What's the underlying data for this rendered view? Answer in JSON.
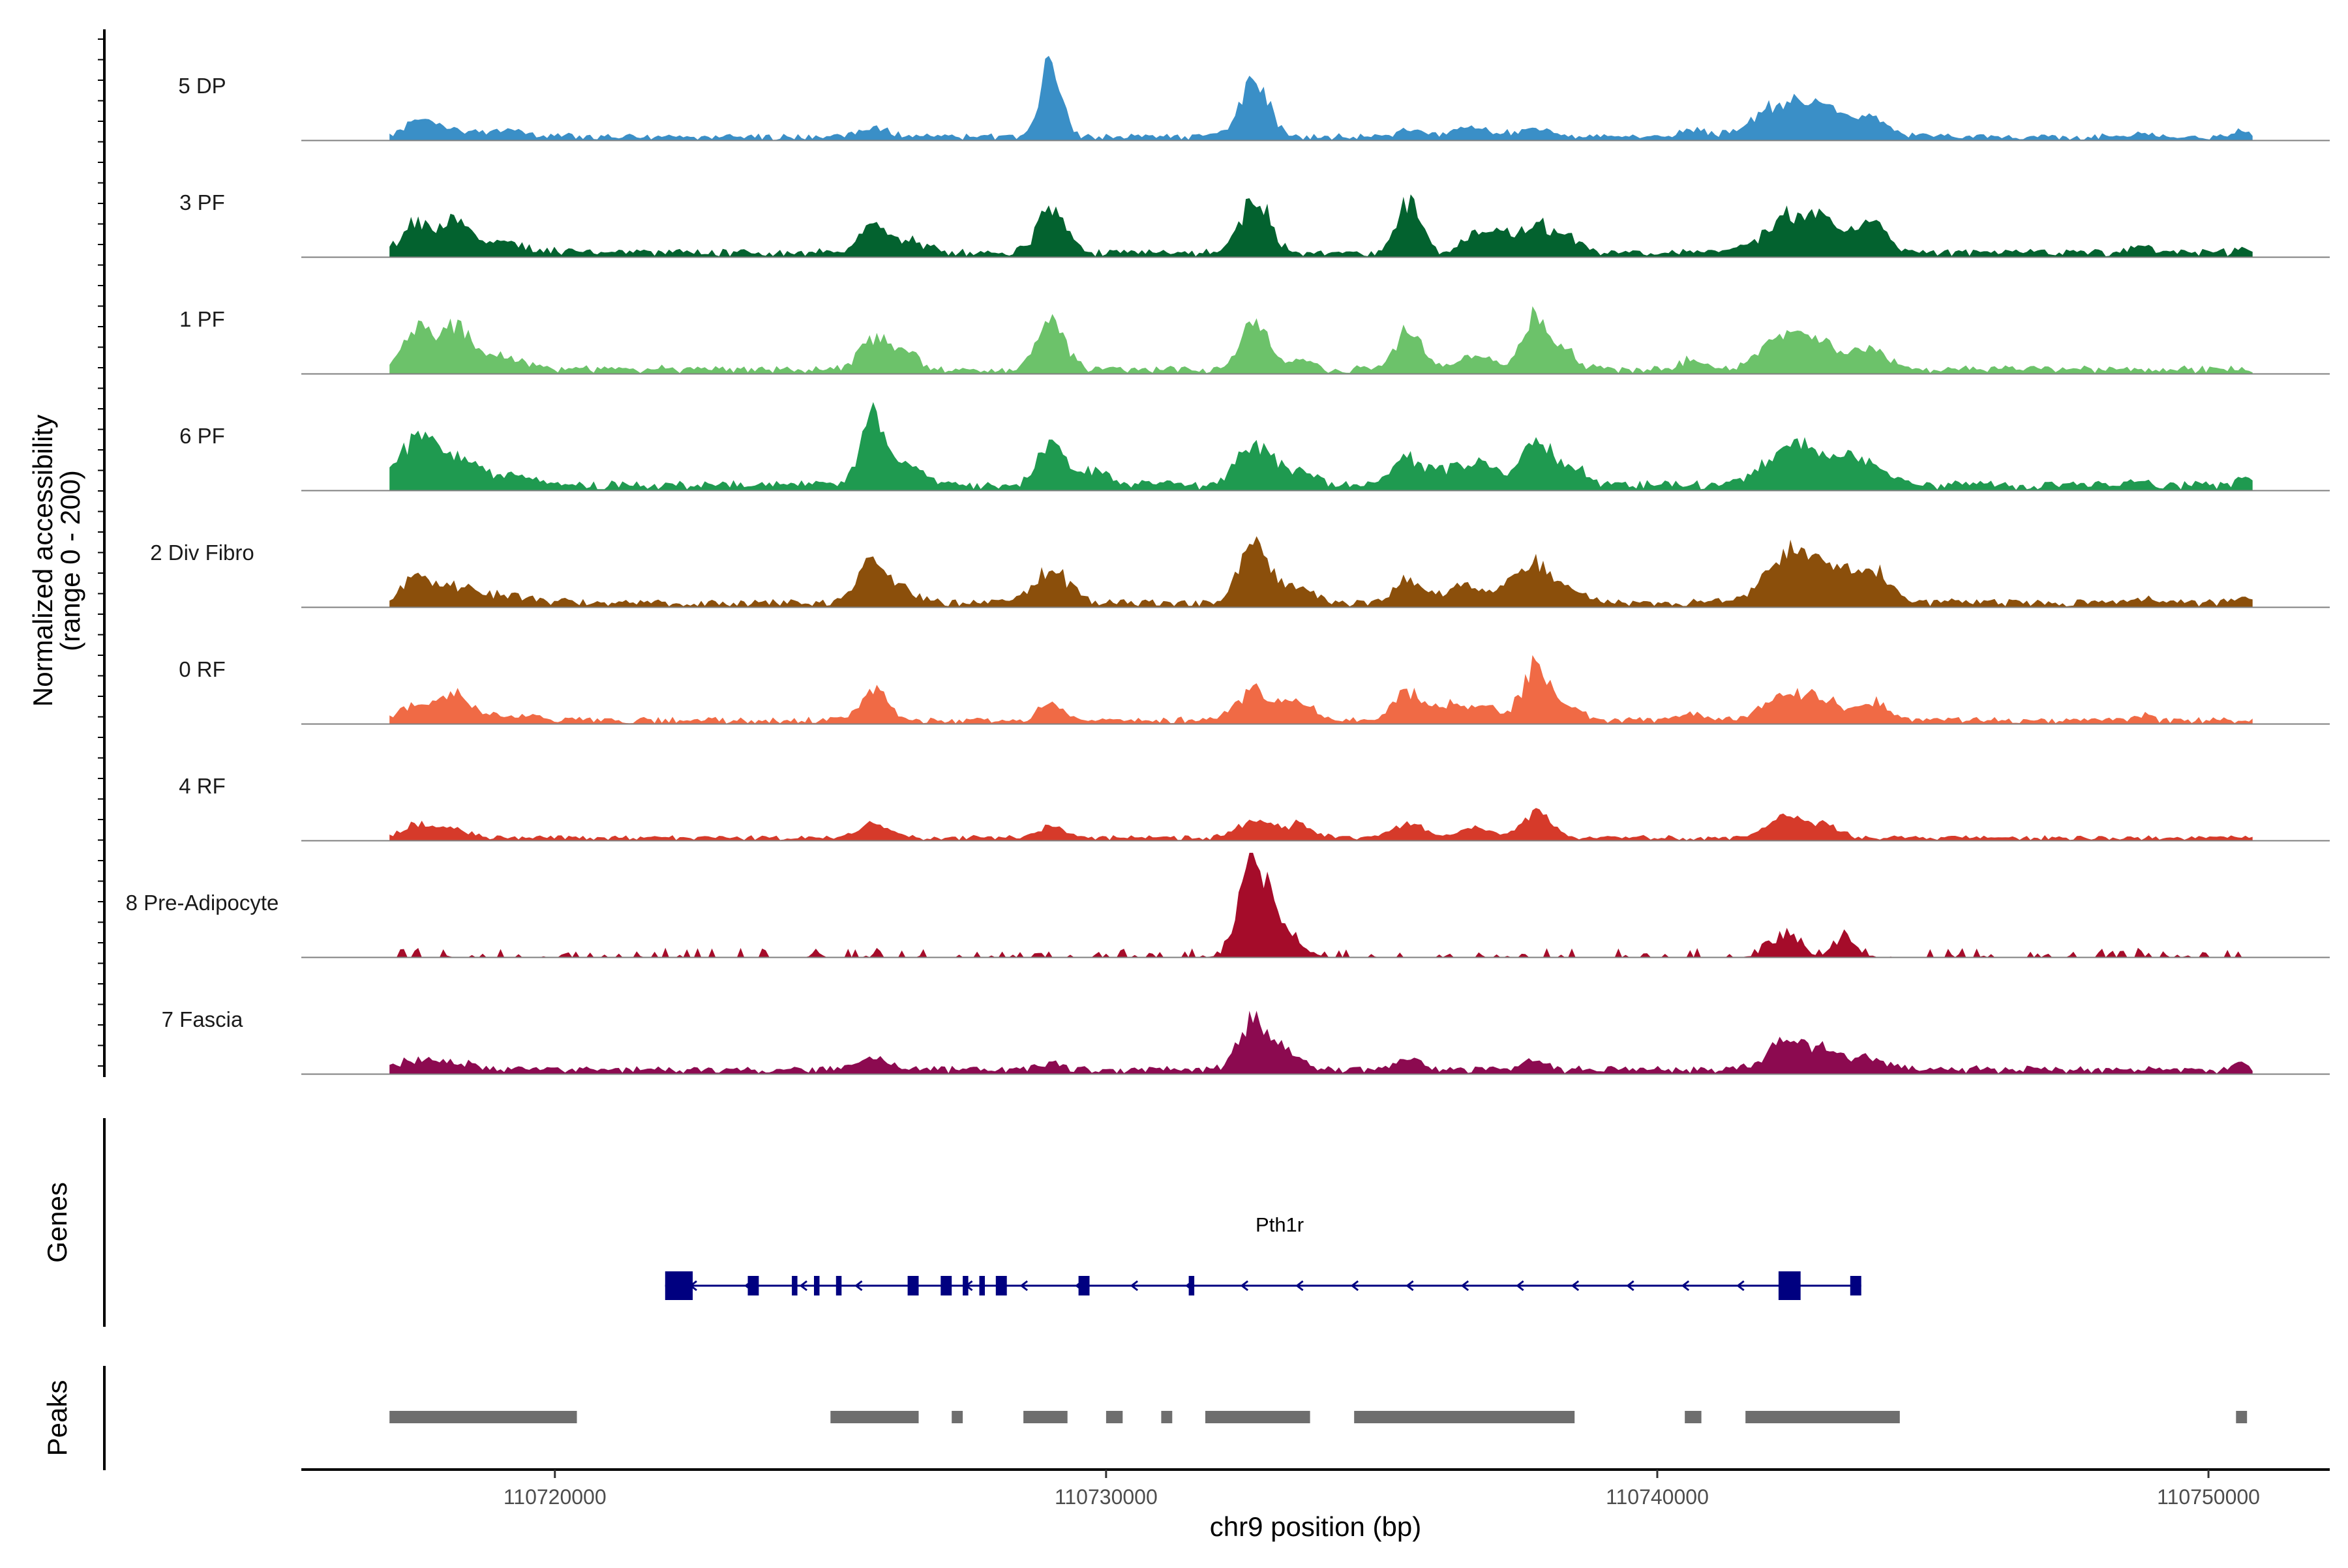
{
  "chart_data": {
    "type": "area",
    "title": "",
    "chromosome": "chr9",
    "region": [
      110717000,
      110750800
    ],
    "xlabel": "chr9 position (bp)",
    "ylabel_line1": "Normalized accessibility",
    "ylabel_line2": "(range 0 - 200)",
    "ylim": [
      0,
      200
    ],
    "x_ticks": [
      {
        "value": 110720000,
        "label": "110720000"
      },
      {
        "value": 110730000,
        "label": "110730000"
      },
      {
        "value": 110740000,
        "label": "110740000"
      },
      {
        "value": 110750000,
        "label": "110750000"
      }
    ],
    "panel_labels": {
      "genes": "Genes",
      "peaks": "Peaks"
    },
    "tracks": [
      {
        "name": "5 DP",
        "color": "#3A8FC7",
        "base": 8,
        "noise": 6,
        "sparse": false,
        "peaks": [
          [
            110717500,
            20,
            250
          ],
          [
            110717800,
            18,
            300
          ],
          [
            110719000,
            12,
            500
          ],
          [
            110725800,
            18,
            250
          ],
          [
            110729000,
            160,
            180
          ],
          [
            110732700,
            110,
            250
          ],
          [
            110735500,
            14,
            200
          ],
          [
            110736700,
            16,
            400
          ],
          [
            110737800,
            14,
            300
          ],
          [
            110740600,
            18,
            200
          ],
          [
            110742300,
            60,
            500
          ],
          [
            110743000,
            40,
            400
          ],
          [
            110743900,
            35,
            300
          ],
          [
            110748800,
            10,
            150
          ],
          [
            110750600,
            10,
            120
          ]
        ]
      },
      {
        "name": "3 PF",
        "color": "#03622F",
        "base": 10,
        "noise": 7,
        "sparse": false,
        "peaks": [
          [
            110717500,
            60,
            250
          ],
          [
            110718200,
            55,
            250
          ],
          [
            110719000,
            20,
            500
          ],
          [
            110725800,
            55,
            250
          ],
          [
            110726500,
            20,
            250
          ],
          [
            110729000,
            85,
            250
          ],
          [
            110732700,
            110,
            250
          ],
          [
            110735500,
            105,
            200
          ],
          [
            110736700,
            40,
            200
          ],
          [
            110737200,
            35,
            200
          ],
          [
            110737800,
            60,
            250
          ],
          [
            110738400,
            30,
            200
          ],
          [
            110742300,
            60,
            400
          ],
          [
            110743000,
            55,
            400
          ],
          [
            110743900,
            55,
            250
          ],
          [
            110748800,
            15,
            150
          ],
          [
            110750600,
            10,
            120
          ]
        ]
      },
      {
        "name": "1 PF",
        "color": "#6CC26A",
        "base": 10,
        "noise": 7,
        "sparse": false,
        "peaks": [
          [
            110717500,
            95,
            250
          ],
          [
            110718200,
            80,
            250
          ],
          [
            110719000,
            25,
            400
          ],
          [
            110725800,
            65,
            250
          ],
          [
            110726400,
            35,
            200
          ],
          [
            110729000,
            90,
            250
          ],
          [
            110732700,
            85,
            250
          ],
          [
            110733500,
            20,
            200
          ],
          [
            110735500,
            70,
            250
          ],
          [
            110736700,
            30,
            250
          ],
          [
            110737800,
            100,
            250
          ],
          [
            110738400,
            25,
            200
          ],
          [
            110740600,
            20,
            200
          ],
          [
            110742300,
            55,
            400
          ],
          [
            110743000,
            40,
            400
          ],
          [
            110743900,
            35,
            300
          ]
        ]
      },
      {
        "name": "6 PF",
        "color": "#1F9A50",
        "base": 12,
        "noise": 8,
        "sparse": false,
        "peaks": [
          [
            110717500,
            85,
            350
          ],
          [
            110718200,
            45,
            300
          ],
          [
            110719000,
            20,
            500
          ],
          [
            110725800,
            130,
            250
          ],
          [
            110726500,
            30,
            300
          ],
          [
            110729000,
            80,
            250
          ],
          [
            110729800,
            30,
            250
          ],
          [
            110732700,
            80,
            300
          ],
          [
            110733500,
            25,
            300
          ],
          [
            110735500,
            55,
            250
          ],
          [
            110736300,
            35,
            300
          ],
          [
            110736900,
            35,
            250
          ],
          [
            110737800,
            85,
            250
          ],
          [
            110738400,
            35,
            300
          ],
          [
            110742300,
            65,
            400
          ],
          [
            110743000,
            45,
            400
          ],
          [
            110743800,
            45,
            300
          ],
          [
            110748800,
            10,
            150
          ],
          [
            110750600,
            10,
            150
          ]
        ]
      },
      {
        "name": "2 Div Fibro",
        "color": "#8B4F0B",
        "base": 10,
        "noise": 7,
        "sparse": false,
        "peaks": [
          [
            110717500,
            60,
            250
          ],
          [
            110718200,
            30,
            250
          ],
          [
            110719000,
            15,
            500
          ],
          [
            110725800,
            90,
            250
          ],
          [
            110726400,
            20,
            250
          ],
          [
            110729000,
            65,
            300
          ],
          [
            110732700,
            110,
            280
          ],
          [
            110733500,
            25,
            300
          ],
          [
            110735500,
            45,
            250
          ],
          [
            110736500,
            35,
            300
          ],
          [
            110737300,
            30,
            250
          ],
          [
            110737800,
            70,
            250
          ],
          [
            110738400,
            30,
            250
          ],
          [
            110742200,
            70,
            350
          ],
          [
            110742800,
            65,
            350
          ],
          [
            110743500,
            55,
            350
          ],
          [
            110744000,
            45,
            250
          ],
          [
            110748800,
            12,
            150
          ],
          [
            110750600,
            10,
            120
          ]
        ]
      },
      {
        "name": "0 RF",
        "color": "#F06A45",
        "base": 8,
        "noise": 6,
        "sparse": false,
        "peaks": [
          [
            110717500,
            30,
            300
          ],
          [
            110718200,
            45,
            250
          ],
          [
            110719000,
            12,
            500
          ],
          [
            110725800,
            55,
            250
          ],
          [
            110729000,
            35,
            200
          ],
          [
            110732700,
            55,
            300
          ],
          [
            110733500,
            40,
            250
          ],
          [
            110735500,
            55,
            250
          ],
          [
            110736300,
            30,
            250
          ],
          [
            110736900,
            25,
            250
          ],
          [
            110737800,
            105,
            250
          ],
          [
            110738400,
            25,
            250
          ],
          [
            110740600,
            15,
            200
          ],
          [
            110742300,
            40,
            400
          ],
          [
            110743000,
            35,
            350
          ],
          [
            110743900,
            35,
            250
          ],
          [
            110748800,
            12,
            150
          ]
        ]
      },
      {
        "name": "4 RF",
        "color": "#D63A2A",
        "base": 6,
        "noise": 5,
        "sparse": false,
        "peaks": [
          [
            110717500,
            28,
            250
          ],
          [
            110718200,
            18,
            250
          ],
          [
            110725800,
            28,
            250
          ],
          [
            110729000,
            22,
            200
          ],
          [
            110732700,
            35,
            300
          ],
          [
            110733500,
            28,
            250
          ],
          [
            110735500,
            30,
            250
          ],
          [
            110736700,
            18,
            300
          ],
          [
            110737800,
            50,
            250
          ],
          [
            110742300,
            40,
            300
          ],
          [
            110743000,
            25,
            300
          ]
        ]
      },
      {
        "name": "8 Pre-Adipocyte",
        "color": "#A50C2A",
        "base": 0,
        "noise": 18,
        "sparse": true,
        "peaks": [
          [
            110732700,
            195,
            250
          ],
          [
            110733300,
            45,
            250
          ],
          [
            110742300,
            40,
            250
          ],
          [
            110743400,
            35,
            200
          ]
        ]
      },
      {
        "name": "7 Fascia",
        "color": "#8C0A50",
        "base": 10,
        "noise": 6,
        "sparse": false,
        "peaks": [
          [
            110717500,
            18,
            300
          ],
          [
            110718300,
            14,
            300
          ],
          [
            110725800,
            22,
            250
          ],
          [
            110729000,
            14,
            200
          ],
          [
            110732700,
            100,
            280
          ],
          [
            110733300,
            30,
            250
          ],
          [
            110735500,
            20,
            250
          ],
          [
            110737800,
            18,
            200
          ],
          [
            110742300,
            50,
            350
          ],
          [
            110743000,
            35,
            350
          ],
          [
            110743800,
            25,
            300
          ],
          [
            110750600,
            12,
            120
          ]
        ]
      }
    ],
    "gene": {
      "name": "Pth1r",
      "strand": "-",
      "start": 110722000,
      "end": 110743700,
      "exons": [
        [
          110722000,
          110722500,
          "utr"
        ],
        [
          110723500,
          110723700,
          "cds"
        ],
        [
          110724300,
          110724400,
          "cds"
        ],
        [
          110724700,
          110724800,
          "cds"
        ],
        [
          110725100,
          110725200,
          "cds"
        ],
        [
          110726400,
          110726600,
          "cds"
        ],
        [
          110727000,
          110727200,
          "cds"
        ],
        [
          110727400,
          110727500,
          "cds"
        ],
        [
          110727700,
          110727800,
          "cds"
        ],
        [
          110728000,
          110728200,
          "cds"
        ],
        [
          110729500,
          110729700,
          "cds"
        ],
        [
          110731500,
          110731600,
          "cds"
        ],
        [
          110742200,
          110742600,
          "utr"
        ],
        [
          110743500,
          110743700,
          "cds"
        ]
      ]
    },
    "peaks": [
      [
        110717000,
        110720400
      ],
      [
        110725000,
        110726600
      ],
      [
        110727200,
        110727400
      ],
      [
        110728500,
        110729300
      ],
      [
        110730000,
        110730300
      ],
      [
        110731000,
        110731200
      ],
      [
        110731800,
        110733700
      ],
      [
        110734500,
        110738500
      ],
      [
        110740500,
        110740800
      ],
      [
        110741600,
        110744400
      ],
      [
        110750500,
        110750700
      ]
    ]
  }
}
